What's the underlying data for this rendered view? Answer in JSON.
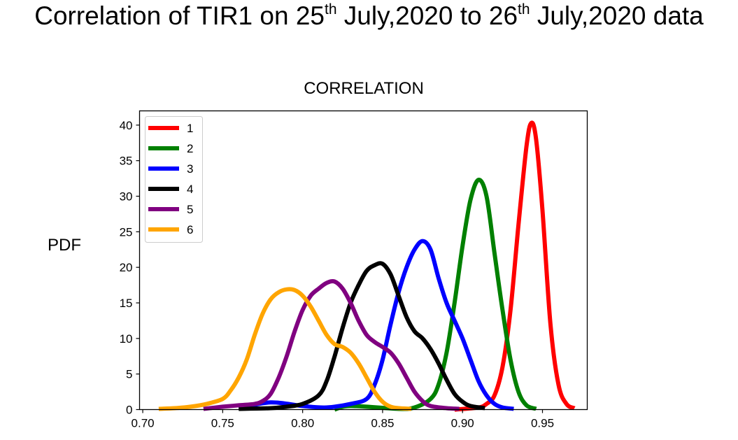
{
  "header": {
    "title_part1": "Correlation of TIR1 on 25",
    "title_sup1": "th",
    "title_part2": " July,2020 to 26",
    "title_sup2": "th",
    "title_part3": " July,2020 data"
  },
  "chart_data": {
    "type": "line",
    "title": "CORRELATION",
    "xlabel": "",
    "ylabel": "PDF",
    "xlim": [
      0.698,
      0.978
    ],
    "ylim": [
      0,
      42
    ],
    "xticks": [
      0.7,
      0.75,
      0.8,
      0.85,
      0.9,
      0.95
    ],
    "xtick_labels": [
      "0.70",
      "0.75",
      "0.80",
      "0.85",
      "0.90",
      "0.95"
    ],
    "yticks": [
      0,
      5,
      10,
      15,
      20,
      25,
      30,
      35,
      40
    ],
    "ytick_labels": [
      "0",
      "5",
      "10",
      "15",
      "20",
      "25",
      "30",
      "35",
      "40"
    ],
    "grid": false,
    "legend_position": "upper-left",
    "series": [
      {
        "name": "1",
        "color": "#ff0000",
        "x": [
          0.895,
          0.91,
          0.915,
          0.92,
          0.925,
          0.93,
          0.935,
          0.94,
          0.943,
          0.946,
          0.95,
          0.955,
          0.96,
          0.965,
          0.97
        ],
        "y": [
          0,
          0.3,
          0.8,
          2,
          6,
          14,
          26,
          37,
          40.3,
          38,
          28,
          12,
          3.5,
          0.8,
          0.2
        ]
      },
      {
        "name": "2",
        "color": "#008000",
        "x": [
          0.82,
          0.83,
          0.86,
          0.87,
          0.88,
          0.885,
          0.89,
          0.895,
          0.9,
          0.905,
          0.91,
          0.915,
          0.92,
          0.925,
          0.93,
          0.935,
          0.94,
          0.946
        ],
        "y": [
          0,
          0.5,
          0.1,
          0.3,
          1.5,
          3.5,
          8,
          15,
          23,
          29.5,
          32.3,
          30,
          22,
          14,
          7,
          2.5,
          0.6,
          0.1
        ]
      },
      {
        "name": "3",
        "color": "#0000ff",
        "x": [
          0.76,
          0.78,
          0.8,
          0.815,
          0.83,
          0.84,
          0.845,
          0.85,
          0.855,
          0.86,
          0.865,
          0.87,
          0.875,
          0.88,
          0.885,
          0.89,
          0.895,
          0.9,
          0.905,
          0.91,
          0.915,
          0.92,
          0.925,
          0.932
        ],
        "y": [
          0.2,
          1.0,
          0.5,
          0.3,
          0.8,
          1.5,
          3.5,
          7,
          12,
          16.5,
          20,
          22.5,
          23.7,
          22.5,
          18.5,
          15,
          12.5,
          10,
          7,
          4,
          2,
          0.8,
          0.3,
          0.1
        ]
      },
      {
        "name": "4",
        "color": "#000000",
        "x": [
          0.76,
          0.78,
          0.79,
          0.8,
          0.81,
          0.815,
          0.82,
          0.825,
          0.83,
          0.835,
          0.84,
          0.845,
          0.85,
          0.855,
          0.86,
          0.865,
          0.87,
          0.875,
          0.88,
          0.885,
          0.89,
          0.895,
          0.9,
          0.905,
          0.914
        ],
        "y": [
          0.1,
          0.2,
          0.4,
          0.8,
          2,
          4,
          7.5,
          11.5,
          15,
          17.5,
          19.5,
          20.3,
          20.5,
          19,
          16,
          13,
          11,
          10,
          8.5,
          6.5,
          4.2,
          2.2,
          1.1,
          0.5,
          0.2
        ]
      },
      {
        "name": "5",
        "color": "#800080",
        "x": [
          0.738,
          0.75,
          0.76,
          0.77,
          0.775,
          0.78,
          0.785,
          0.79,
          0.795,
          0.8,
          0.805,
          0.81,
          0.815,
          0.82,
          0.825,
          0.83,
          0.835,
          0.84,
          0.845,
          0.85,
          0.855,
          0.86,
          0.865,
          0.87,
          0.875,
          0.88,
          0.89,
          0.898
        ],
        "y": [
          0.1,
          0.4,
          0.6,
          0.8,
          1.2,
          2.2,
          4.5,
          7.5,
          11,
          14,
          16,
          17,
          17.8,
          18,
          17,
          15,
          12.5,
          10.5,
          9.5,
          8.8,
          8,
          6.5,
          4.5,
          2.5,
          1.2,
          0.5,
          0.2,
          0.1
        ]
      },
      {
        "name": "6",
        "color": "#ffa500",
        "x": [
          0.71,
          0.72,
          0.73,
          0.74,
          0.75,
          0.755,
          0.76,
          0.765,
          0.77,
          0.775,
          0.78,
          0.785,
          0.79,
          0.795,
          0.8,
          0.805,
          0.81,
          0.815,
          0.82,
          0.825,
          0.83,
          0.835,
          0.84,
          0.845,
          0.85,
          0.855,
          0.86,
          0.868
        ],
        "y": [
          0.1,
          0.2,
          0.4,
          0.8,
          1.5,
          2.7,
          4.5,
          7,
          10.5,
          13.5,
          15.5,
          16.5,
          16.9,
          16.8,
          16,
          14.5,
          12.5,
          10.5,
          9.2,
          8.8,
          8,
          6.5,
          4.5,
          2.5,
          1.1,
          0.4,
          0.2,
          0.1
        ]
      }
    ]
  }
}
